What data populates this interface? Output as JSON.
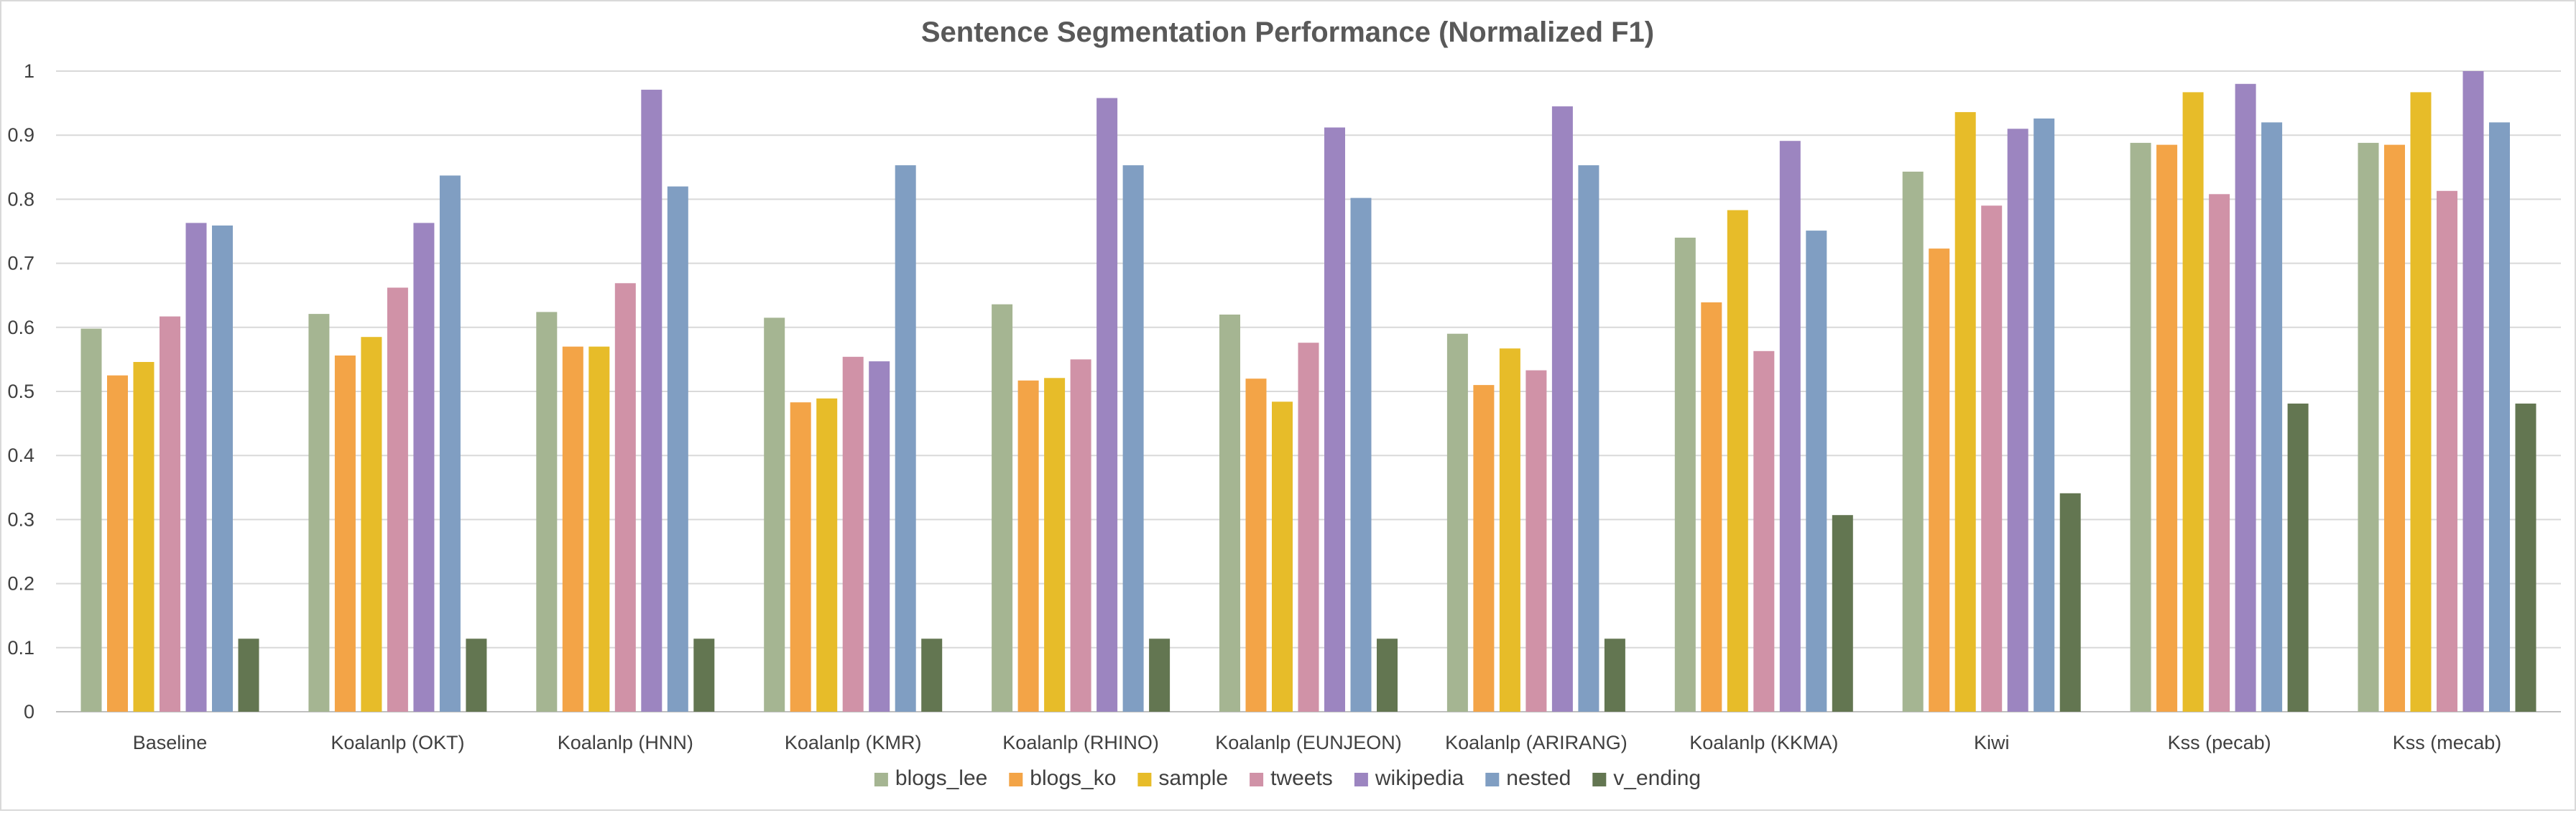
{
  "chart_data": {
    "type": "bar",
    "title": "Sentence Segmentation Performance (Normalized F1)",
    "xlabel": "",
    "ylabel": "",
    "ylim": [
      0,
      1
    ],
    "yticks": [
      "0",
      "0.1",
      "0.2",
      "0.3",
      "0.4",
      "0.5",
      "0.6",
      "0.7",
      "0.8",
      "0.9",
      "1"
    ],
    "grid": true,
    "legend_position": "bottom",
    "categories": [
      "Baseline",
      "Koalanlp (OKT)",
      "Koalanlp (HNN)",
      "Koalanlp (KMR)",
      "Koalanlp (RHINO)",
      "Koalanlp (EUNJEON)",
      "Koalanlp (ARIRANG)",
      "Koalanlp (KKMA)",
      "Kiwi",
      "Kss (pecab)",
      "Kss (mecab)"
    ],
    "series": [
      {
        "name": "blogs_lee",
        "color": "#a5b592",
        "values": [
          0.598,
          0.621,
          0.624,
          0.615,
          0.636,
          0.62,
          0.59,
          0.74,
          0.843,
          0.888,
          0.888
        ]
      },
      {
        "name": "blogs_ko",
        "color": "#f3a447",
        "values": [
          0.525,
          0.556,
          0.57,
          0.483,
          0.517,
          0.52,
          0.51,
          0.639,
          0.723,
          0.885,
          0.885
        ]
      },
      {
        "name": "sample",
        "color": "#e7bc29",
        "values": [
          0.546,
          0.585,
          0.57,
          0.489,
          0.521,
          0.484,
          0.567,
          0.783,
          0.936,
          0.967,
          0.967
        ]
      },
      {
        "name": "tweets",
        "color": "#d092a7",
        "values": [
          0.617,
          0.662,
          0.669,
          0.554,
          0.55,
          0.576,
          0.533,
          0.563,
          0.79,
          0.808,
          0.813
        ]
      },
      {
        "name": "wikipedia",
        "color": "#9c85c0",
        "values": [
          0.763,
          0.763,
          0.971,
          0.547,
          0.958,
          0.912,
          0.945,
          0.891,
          0.91,
          0.98,
          1.0
        ]
      },
      {
        "name": "nested",
        "color": "#809ec2",
        "values": [
          0.759,
          0.837,
          0.82,
          0.853,
          0.853,
          0.802,
          0.853,
          0.751,
          0.926,
          0.92,
          0.92
        ]
      },
      {
        "name": "v_ending",
        "color": "#637651",
        "values": [
          0.114,
          0.114,
          0.114,
          0.114,
          0.114,
          0.114,
          0.114,
          0.307,
          0.341,
          0.481,
          0.481
        ]
      }
    ]
  }
}
